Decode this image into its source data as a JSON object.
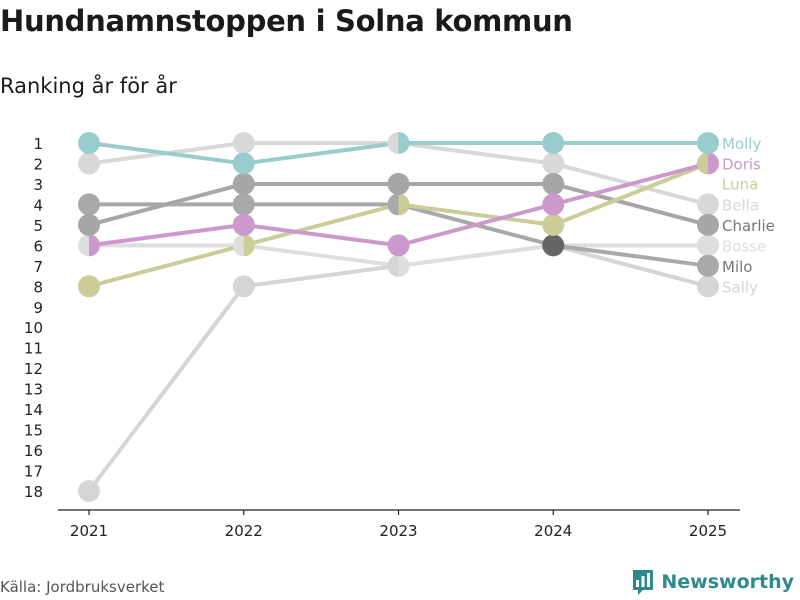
{
  "title": "Hundnamnstoppen i Solna kommun",
  "subtitle": "Ranking år för år",
  "source": "Källa: Jordbruksverket",
  "brand": "Newsworthy",
  "brand_icon": "bar-chart-icon",
  "colors": {
    "brand": "#2f8a8c",
    "axis": "#222222",
    "text": "#1a1a1a"
  },
  "chart_data": {
    "type": "line",
    "title": "Hundnamnstoppen i Solna kommun",
    "subtitle": "Ranking år för år",
    "xlabel": "",
    "ylabel": "",
    "x": [
      "2021",
      "2022",
      "2023",
      "2024",
      "2025"
    ],
    "y_ticks": [
      "1",
      "2",
      "3",
      "4",
      "5",
      "6",
      "7",
      "8",
      "9",
      "10",
      "11",
      "12",
      "13",
      "14",
      "15",
      "16",
      "17",
      "18"
    ],
    "ylim": [
      1,
      18
    ],
    "y_inverted": true,
    "series": [
      {
        "name": "Sally",
        "color": "#d5d5d5",
        "values": [
          18,
          8,
          7,
          6,
          8
        ]
      },
      {
        "name": "Bosse",
        "color": "#dedede",
        "values": [
          6,
          6,
          7,
          6,
          6
        ]
      },
      {
        "name": "Bella",
        "color": "#d8d8d8",
        "values": [
          2,
          1,
          1,
          2,
          4
        ]
      },
      {
        "name": "Milo",
        "color": "#a9a9a9",
        "values": [
          4,
          4,
          4,
          6,
          7
        ]
      },
      {
        "name": "Charlie",
        "color": "#a6a6a6",
        "values": [
          5,
          3,
          3,
          3,
          5
        ]
      },
      {
        "name": "Luna",
        "color": "#cccc99",
        "values": [
          8,
          6,
          4,
          5,
          2
        ]
      },
      {
        "name": "Doris",
        "color": "#cc99cc",
        "values": [
          6,
          5,
          6,
          4,
          2
        ]
      },
      {
        "name": "Molly",
        "color": "#99cccc",
        "values": [
          1,
          2,
          1,
          1,
          1
        ]
      }
    ],
    "overlap_points": [
      {
        "x": "2024",
        "y": 6,
        "color": "#666666"
      }
    ]
  }
}
